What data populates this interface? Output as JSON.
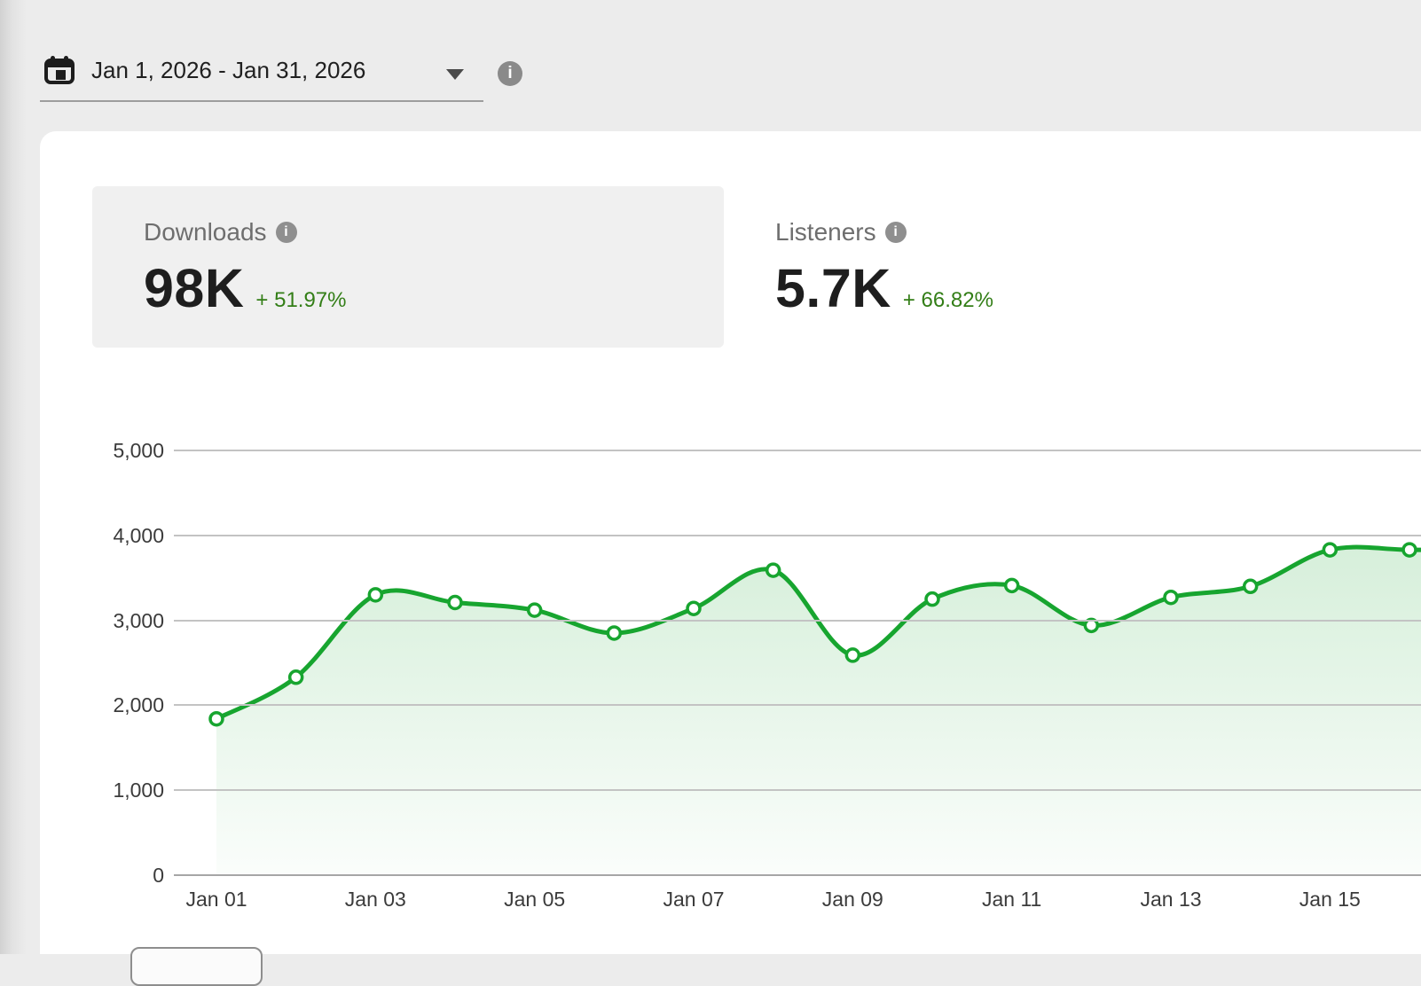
{
  "header": {
    "date_range": "Jan 1, 2026 - Jan 31, 2026"
  },
  "stats": [
    {
      "label": "Downloads",
      "value": "98K",
      "change": "+ 51.97%",
      "selected": true
    },
    {
      "label": "Listeners",
      "value": "5.7K",
      "change": "+ 66.82%",
      "selected": false
    }
  ],
  "info_glyph": "i",
  "colors": {
    "accent_green": "#17a52f",
    "change_green": "#337e17",
    "grid": "#c3c3c3",
    "axis_baseline": "#a6a6a6",
    "page_bg": "#ececec",
    "selected_stat_bg": "#f0f0f0",
    "axis_text": "#3b3b3b"
  },
  "chart_data": {
    "type": "area",
    "series": "Downloads",
    "x": [
      "Jan 01",
      "Jan 02",
      "Jan 03",
      "Jan 04",
      "Jan 05",
      "Jan 06",
      "Jan 07",
      "Jan 08",
      "Jan 09",
      "Jan 10",
      "Jan 11",
      "Jan 12",
      "Jan 13",
      "Jan 14",
      "Jan 15",
      "Jan 16"
    ],
    "values": [
      1840,
      2330,
      3300,
      3210,
      3120,
      2850,
      3140,
      3590,
      2590,
      3250,
      3410,
      2940,
      3270,
      3400,
      3830,
      3830
    ],
    "ylim": [
      0,
      5000
    ],
    "y_ticks": [
      0,
      1000,
      2000,
      3000,
      4000,
      5000
    ],
    "y_tick_labels": [
      "0",
      "1,000",
      "2,000",
      "3,000",
      "4,000",
      "5,000"
    ],
    "x_tick_labels": [
      "Jan 01",
      "Jan 03",
      "Jan 05",
      "Jan 07",
      "Jan 09",
      "Jan 11",
      "Jan 13",
      "Jan 15"
    ],
    "grid": true,
    "legend": false
  }
}
